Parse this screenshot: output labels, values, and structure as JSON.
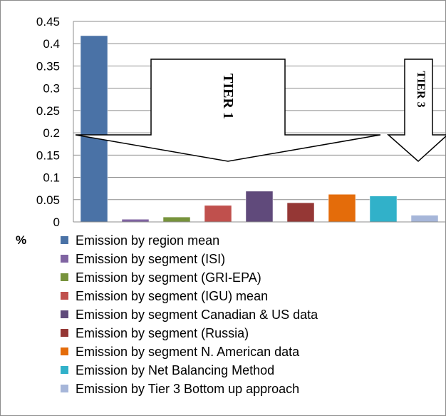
{
  "chart_data": {
    "type": "bar",
    "title": "",
    "xlabel": "",
    "ylabel": "%",
    "ylim": [
      0,
      0.45
    ],
    "yticks": [
      0,
      0.05,
      0.1,
      0.15,
      0.2,
      0.25,
      0.3,
      0.35,
      0.4,
      0.45
    ],
    "grid": true,
    "legend": "bottom",
    "categories": [
      "Emission by region mean",
      "Emission by segment (ISI)",
      "Emission by segment (GRI-EPA)",
      "Emission by segment (IGU) mean",
      "Emission by segment Canadian & US data",
      "Emission by segment (Russia)",
      "Emission by segment N. American data",
      "Emission by Net Balancing Method",
      "Emission by Tier 3 Bottom up approach"
    ],
    "values": [
      0.418,
      0.006,
      0.011,
      0.037,
      0.069,
      0.043,
      0.062,
      0.058,
      0.015
    ],
    "colors": [
      "#4a72a6",
      "#8064a2",
      "#77933c",
      "#c0504d",
      "#604a7b",
      "#953735",
      "#e46c0a",
      "#31b1c9",
      "#a6b6d9"
    ],
    "annotations": [
      "TIER 1",
      "TIER 3"
    ]
  }
}
